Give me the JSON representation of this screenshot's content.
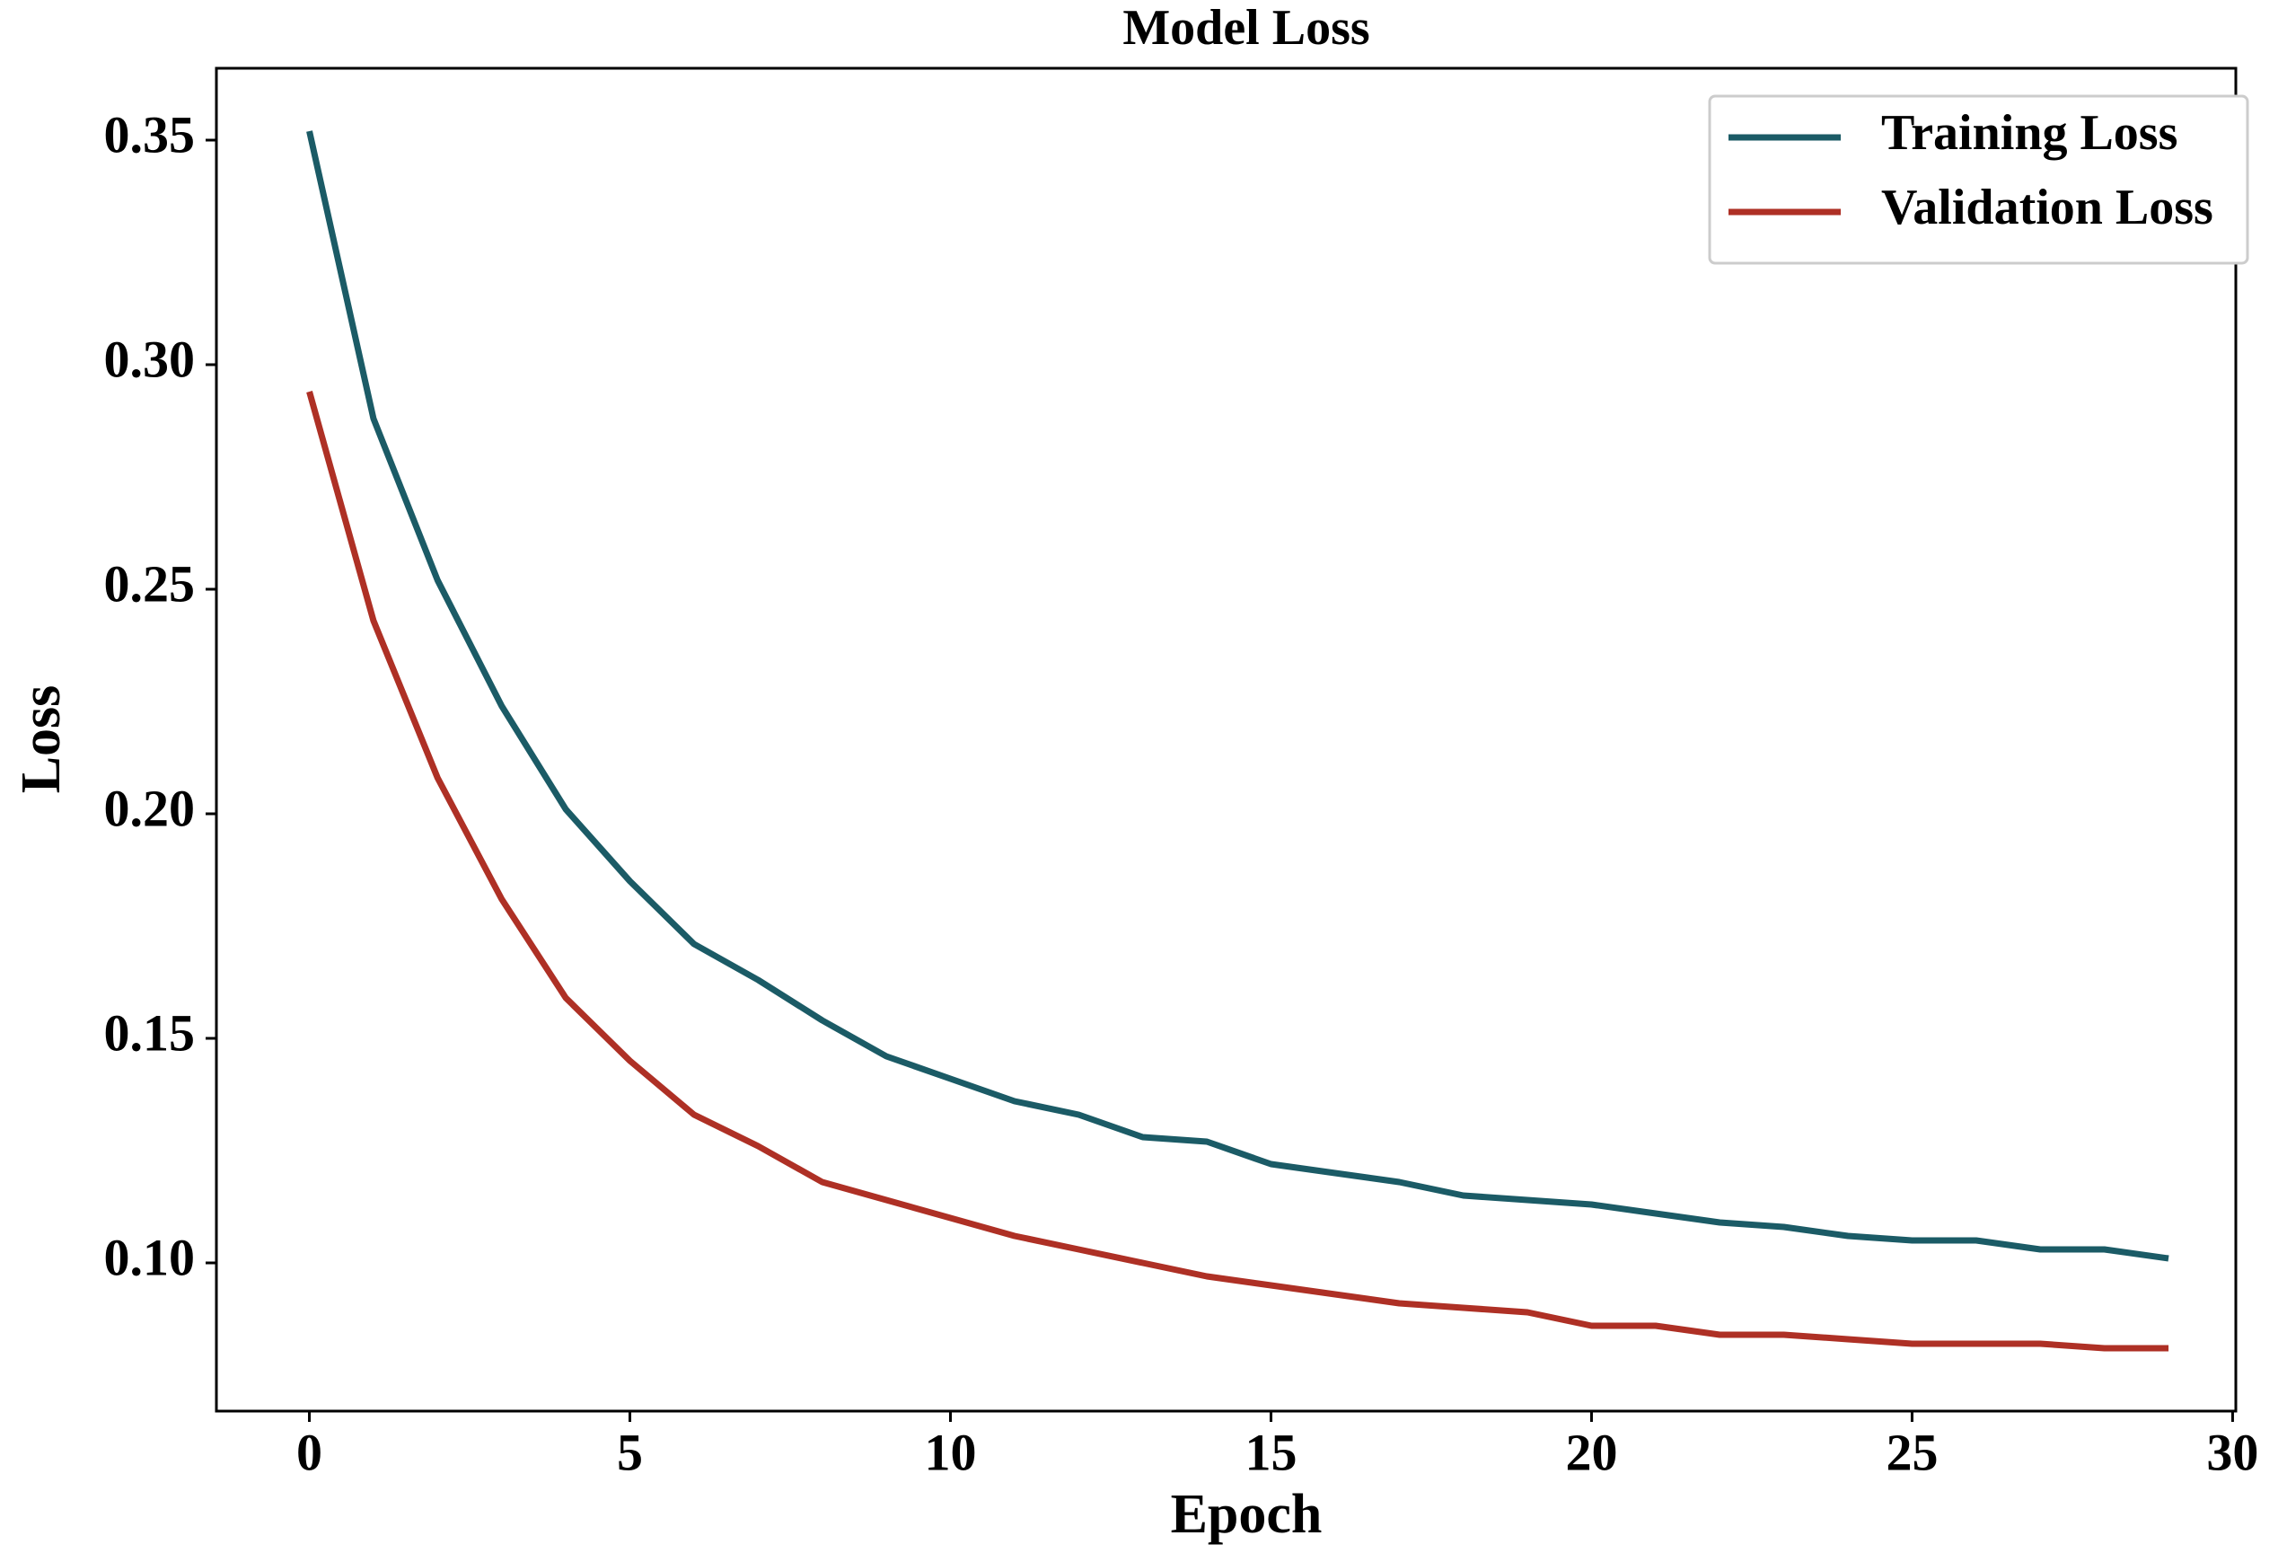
{
  "chart_data": {
    "type": "line",
    "title": "Model Loss",
    "x_label": "Epoch",
    "y_label": "Loss",
    "x": [
      0,
      1,
      2,
      3,
      4,
      5,
      6,
      7,
      8,
      9,
      10,
      11,
      12,
      13,
      14,
      15,
      16,
      17,
      18,
      19,
      20,
      21,
      22,
      23,
      24,
      25,
      26,
      27,
      28,
      29
    ],
    "series": [
      {
        "name": "Training Loss",
        "color": "#1b5b66",
        "values": [
          0.352,
          0.288,
          0.252,
          0.224,
          0.201,
          0.185,
          0.171,
          0.163,
          0.154,
          0.146,
          0.141,
          0.136,
          0.133,
          0.128,
          0.127,
          0.122,
          0.12,
          0.118,
          0.115,
          0.114,
          0.113,
          0.111,
          0.109,
          0.108,
          0.106,
          0.105,
          0.105,
          0.103,
          0.103,
          0.101
        ]
      },
      {
        "name": "Validation Loss",
        "color": "#ae3025",
        "values": [
          0.294,
          0.243,
          0.208,
          0.181,
          0.159,
          0.145,
          0.133,
          0.126,
          0.118,
          0.114,
          0.11,
          0.106,
          0.103,
          0.1,
          0.097,
          0.095,
          0.093,
          0.091,
          0.09,
          0.089,
          0.086,
          0.086,
          0.084,
          0.084,
          0.083,
          0.082,
          0.082,
          0.082,
          0.081,
          0.081
        ]
      }
    ],
    "xlim": [
      -1.45,
      30.05
    ],
    "xticks": [
      0,
      5,
      10,
      15,
      20,
      25,
      30
    ],
    "ylim": [
      0.067,
      0.366
    ],
    "yticks": [
      {
        "value": 0.1,
        "label": "0.10"
      },
      {
        "value": 0.15,
        "label": "0.15"
      },
      {
        "value": 0.2,
        "label": "0.20"
      },
      {
        "value": 0.25,
        "label": "0.25"
      },
      {
        "value": 0.3,
        "label": "0.30"
      },
      {
        "value": 0.35,
        "label": "0.35"
      }
    ],
    "legend": "upper right",
    "grid": false
  }
}
